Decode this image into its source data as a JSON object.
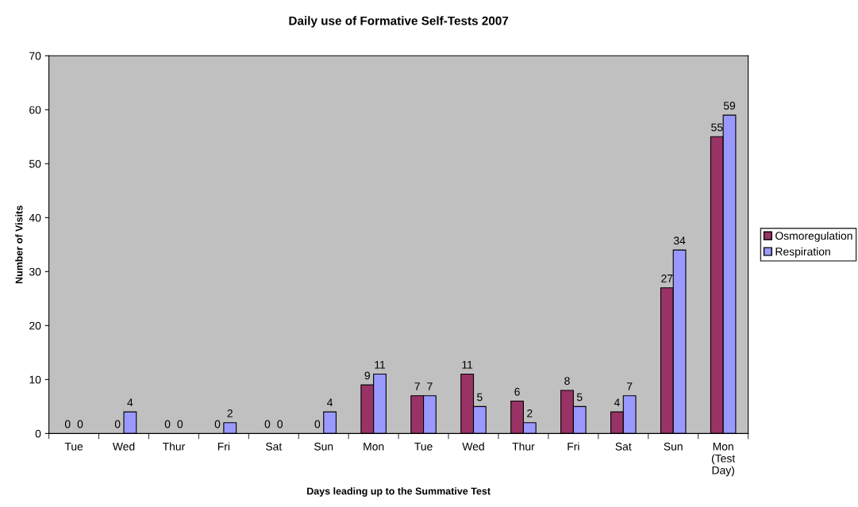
{
  "chart_data": {
    "type": "bar",
    "title": "Daily use of Formative Self-Tests 2007",
    "xlabel": "Days leading up to the Summative Test",
    "ylabel": "Number of Visits",
    "categories": [
      "Tue",
      "Wed",
      "Thur",
      "Fri",
      "Sat",
      "Sun",
      "Mon",
      "Tue",
      "Wed",
      "Thur",
      "Fri",
      "Sat",
      "Sun",
      "Mon\n(Test\nDay)"
    ],
    "series": [
      {
        "name": "Osmoregulation",
        "color": "#993366",
        "values": [
          0,
          0,
          0,
          0,
          0,
          0,
          9,
          7,
          11,
          6,
          8,
          4,
          27,
          55
        ]
      },
      {
        "name": "Respiration",
        "color": "#9999ff",
        "values": [
          0,
          4,
          0,
          2,
          0,
          4,
          11,
          7,
          5,
          2,
          5,
          7,
          34,
          59
        ]
      }
    ],
    "ylim": [
      0,
      70
    ],
    "yticks": [
      0,
      10,
      20,
      30,
      40,
      50,
      60,
      70
    ],
    "grid": false,
    "legend": "right",
    "data_labels": true
  }
}
